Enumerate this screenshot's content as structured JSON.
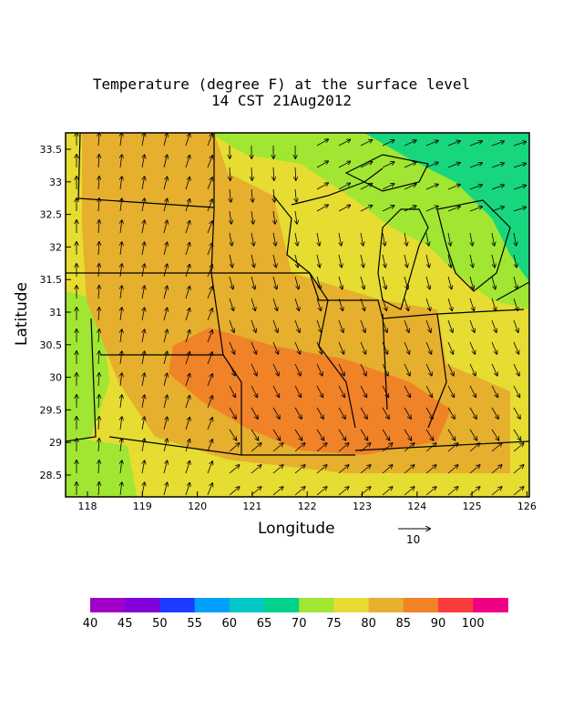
{
  "title_line1": "Temperature (degree F) at the surface level",
  "title_line2": "14 CST 21Aug2012",
  "xlabel": "Longitude",
  "ylabel": "Latitude",
  "vector_ref_label": "10",
  "x_ticks": [
    "118",
    "119",
    "120",
    "121",
    "122",
    "123",
    "124",
    "125",
    "126"
  ],
  "y_ticks": [
    "33.5",
    "33",
    "32.5",
    "32",
    "31.5",
    "31",
    "30.5",
    "30",
    "29.5",
    "29",
    "28.5"
  ],
  "colorbar": {
    "labels": [
      "40",
      "45",
      "50",
      "55",
      "60",
      "65",
      "70",
      "75",
      "80",
      "85",
      "90",
      "100"
    ],
    "colors": [
      "#a000c8",
      "#8200dc",
      "#1e3cff",
      "#00a0ff",
      "#00c8c8",
      "#00d28c",
      "#a0e632",
      "#e6dc32",
      "#e6af2d",
      "#f08228",
      "#fa3c3c",
      "#f00082"
    ]
  }
}
